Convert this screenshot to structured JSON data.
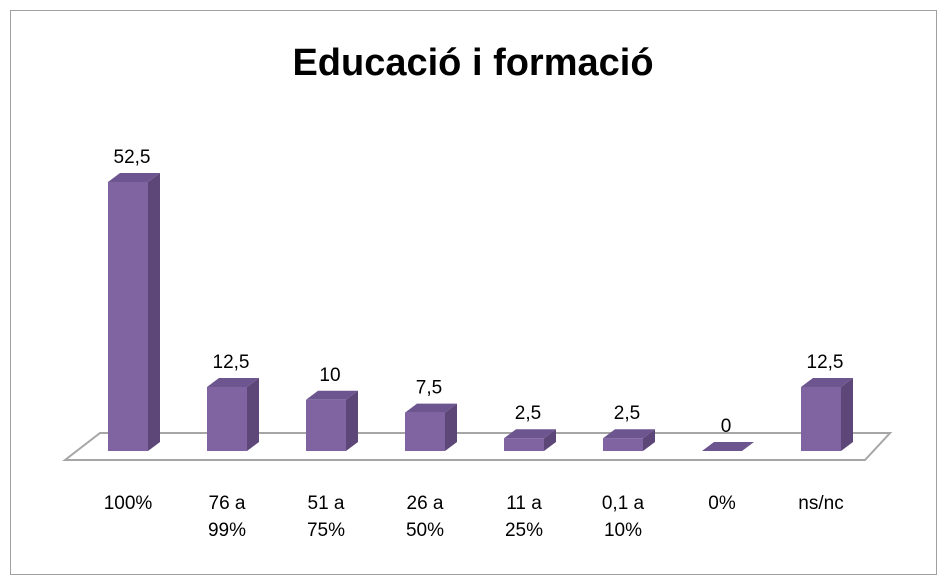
{
  "chart_data": {
    "type": "bar3d",
    "title": "Educació i formació",
    "categories": [
      "100%",
      "76 a 99%",
      "51 a 75%",
      "26 a 50%",
      "11 a 25%",
      "0,1 a 10%",
      "0%",
      "ns/nc"
    ],
    "values": [
      52.5,
      12.5,
      10,
      7.5,
      2.5,
      2.5,
      0,
      12.5
    ],
    "value_labels": [
      "52,5",
      "12,5",
      "10",
      "7,5",
      "2,5",
      "2,5",
      "0",
      "12,5"
    ],
    "color": "#8064a2"
  }
}
